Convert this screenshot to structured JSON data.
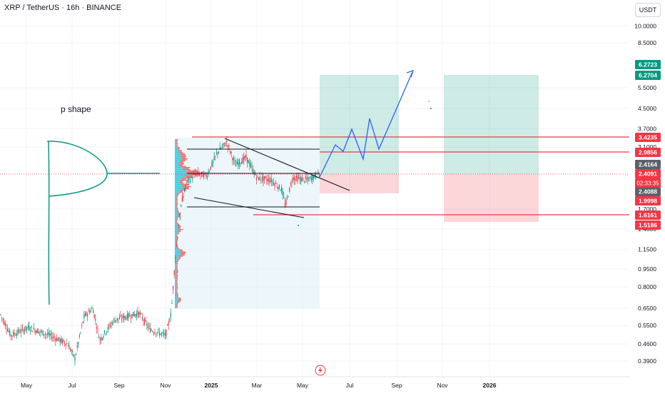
{
  "header": {
    "symbol_title": "XRP / TetherUS · 16h · BINANCE",
    "currency": "USDT"
  },
  "chart_data": {
    "type": "candlestick",
    "symbol": "XRP / TetherUS",
    "interval": "16h",
    "exchange": "BINANCE",
    "y_scale": "log",
    "y_ticks": [
      "10.0000",
      "8.5000",
      "5.5000",
      "4.5000",
      "3.7000",
      "3.1000",
      "1.7000",
      "1.4000",
      "1.1500",
      "0.9500",
      "0.8000",
      "0.6500",
      "0.5500",
      "0.4600",
      "0.3900"
    ],
    "x_ticks": [
      "May",
      "Jul",
      "Sep",
      "Nov",
      "2025",
      "Mar",
      "May",
      "Jul",
      "Sep",
      "Nov",
      "2026"
    ],
    "price_labels": [
      {
        "value": "6.2723",
        "color": "#089981"
      },
      {
        "value": "6.2704",
        "color": "#089981"
      },
      {
        "value": "3.4235",
        "color": "#f23645"
      },
      {
        "value": "2.9856",
        "color": "#f23645"
      },
      {
        "value": "2.4164",
        "color": "#5d606b"
      },
      {
        "value": "2.4091",
        "color": "#f23645"
      },
      {
        "value": "2.4088",
        "color": "#5d606b"
      },
      {
        "value": "1.9998",
        "color": "#f23645"
      },
      {
        "value": "1.6161",
        "color": "#f23645"
      },
      {
        "value": "1.5186",
        "color": "#f23645"
      }
    ],
    "countdown": "02:33:35",
    "annotation": "p shape",
    "close_series": [
      [
        "2024-04",
        0.6
      ],
      [
        "2024-05",
        0.52
      ],
      [
        "2024-06",
        0.48
      ],
      [
        "2024-07",
        0.55
      ],
      [
        "2024-08",
        0.58
      ],
      [
        "2024-09",
        0.55
      ],
      [
        "2024-10",
        0.53
      ],
      [
        "2024-11",
        0.6
      ],
      [
        "2024-12",
        2.3
      ],
      [
        "2025-01",
        3.0
      ],
      [
        "2025-02",
        2.6
      ],
      [
        "2025-03",
        2.3
      ],
      [
        "2025-04",
        2.1
      ],
      [
        "2025-05",
        2.4
      ]
    ],
    "colors": {
      "up": "#089981",
      "down": "#f23645",
      "projection": "#2962ff",
      "profit_zone": "#089981",
      "loss_zone": "#f23645",
      "sketch": "#089981"
    }
  }
}
